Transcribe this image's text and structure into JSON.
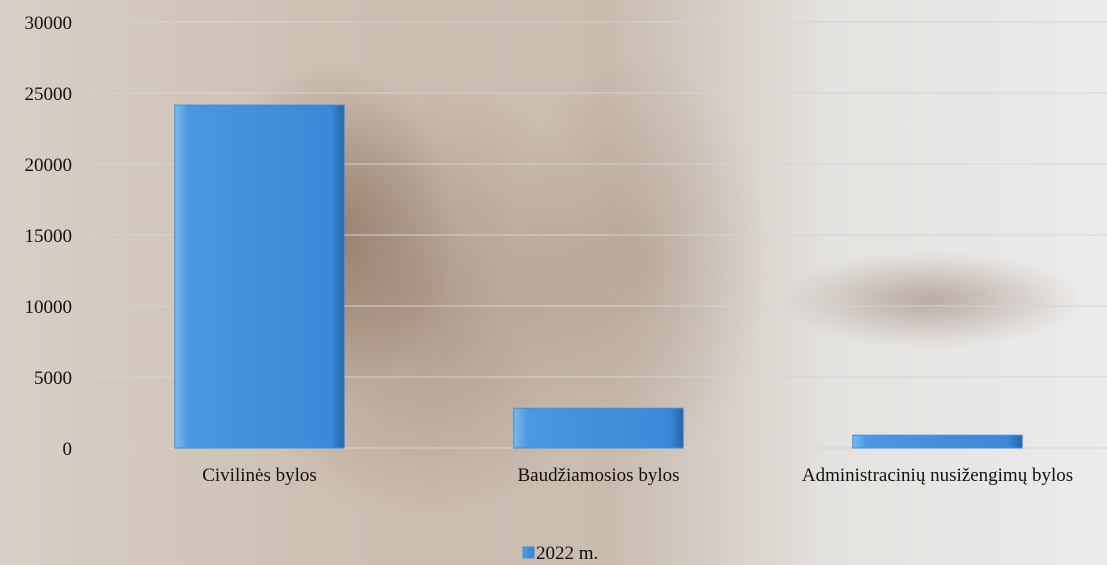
{
  "chart_data": {
    "type": "bar",
    "categories": [
      "Civilinės bylos",
      "Baudžiamosios bylos",
      "Administracinių nusižengimų bylos"
    ],
    "series": [
      {
        "name": "2022 m.",
        "color": "#3f8fdc",
        "values": [
          24150,
          2800,
          900
        ]
      }
    ],
    "ylim": [
      0,
      30000
    ],
    "yticks": [
      0,
      5000,
      10000,
      15000,
      20000,
      25000,
      30000
    ],
    "grid": true,
    "legend": "bottom"
  }
}
